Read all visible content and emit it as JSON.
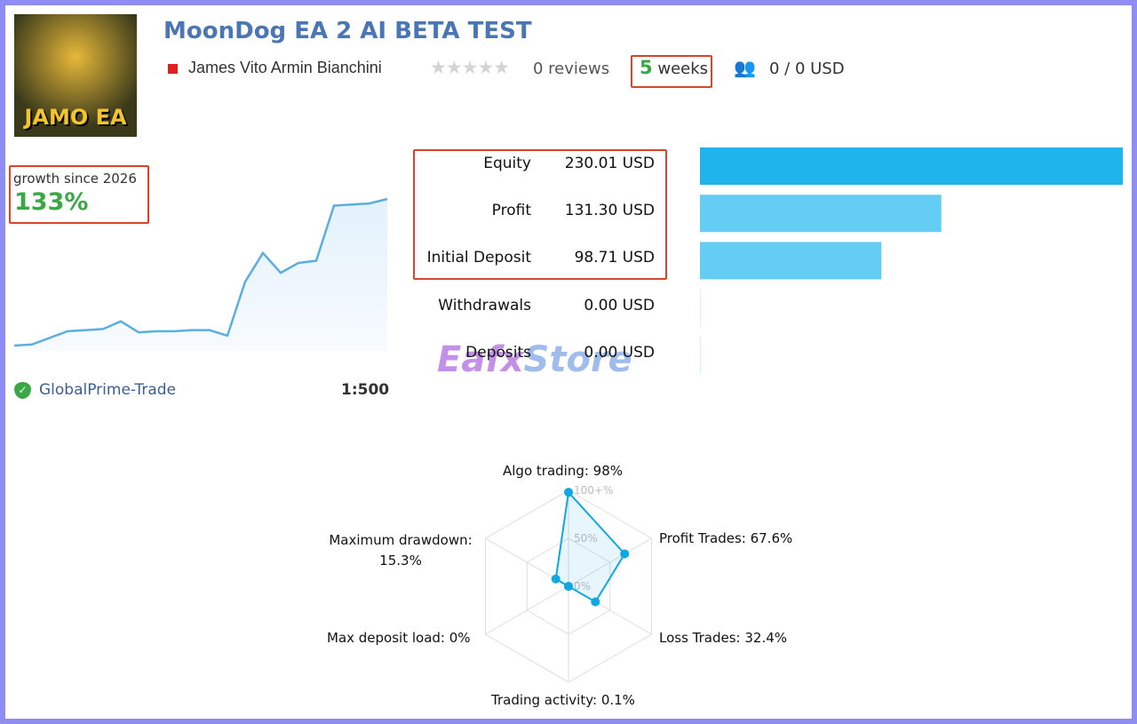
{
  "header": {
    "title": "MoonDog EA 2 AI BETA TEST",
    "author": "James Vito Armin Bianchini",
    "reviews": "0 reviews",
    "age": {
      "value": 5,
      "unit": "weeks"
    },
    "subscribers": "0 / 0 USD",
    "logo_text": "JAMO EA"
  },
  "growth": {
    "label": "growth since 2026",
    "value": "133%",
    "curve": [
      0,
      1,
      7,
      13,
      14,
      15,
      22,
      12,
      13,
      13,
      14,
      14,
      9,
      58,
      84,
      66,
      75,
      77,
      127,
      128,
      129,
      133
    ],
    "color": "#5aaee0"
  },
  "account": {
    "broker": "GlobalPrime-Trade",
    "leverage": "1:500"
  },
  "balances": {
    "categories": [
      "Equity",
      "Profit",
      "Initial Deposit",
      "Withdrawals",
      "Deposits"
    ],
    "values": [
      230.01,
      131.3,
      98.71,
      0.0,
      0.0
    ],
    "value_labels": [
      "230.01 USD",
      "131.30 USD",
      "98.71 USD",
      "0.00 USD",
      "0.00 USD"
    ],
    "colors": [
      "#1fb5ec",
      "#63cdf3",
      "#63cdf3",
      "#63cdf3",
      "#63cdf3"
    ]
  },
  "watermark": {
    "part1": "Eafx",
    "part2": "Store"
  },
  "radar": {
    "axes": [
      {
        "label": "Algo trading: 98%",
        "value": 98
      },
      {
        "label": "Profit Trades: 67.6%",
        "value": 67.6
      },
      {
        "label": "Loss Trades: 32.4%",
        "value": 32.4
      },
      {
        "label": "Trading activity: 0.1%",
        "value": 0.1
      },
      {
        "label": "Max deposit load: 0%",
        "value": 0
      },
      {
        "label": "Maximum drawdown: 15.3%",
        "value": 15.3
      }
    ],
    "ticks": [
      {
        "value": 100,
        "label": "100+%"
      },
      {
        "value": 50,
        "label": "50%"
      },
      {
        "value": 0,
        "label": "0%"
      }
    ],
    "color": "#10a8e0"
  }
}
